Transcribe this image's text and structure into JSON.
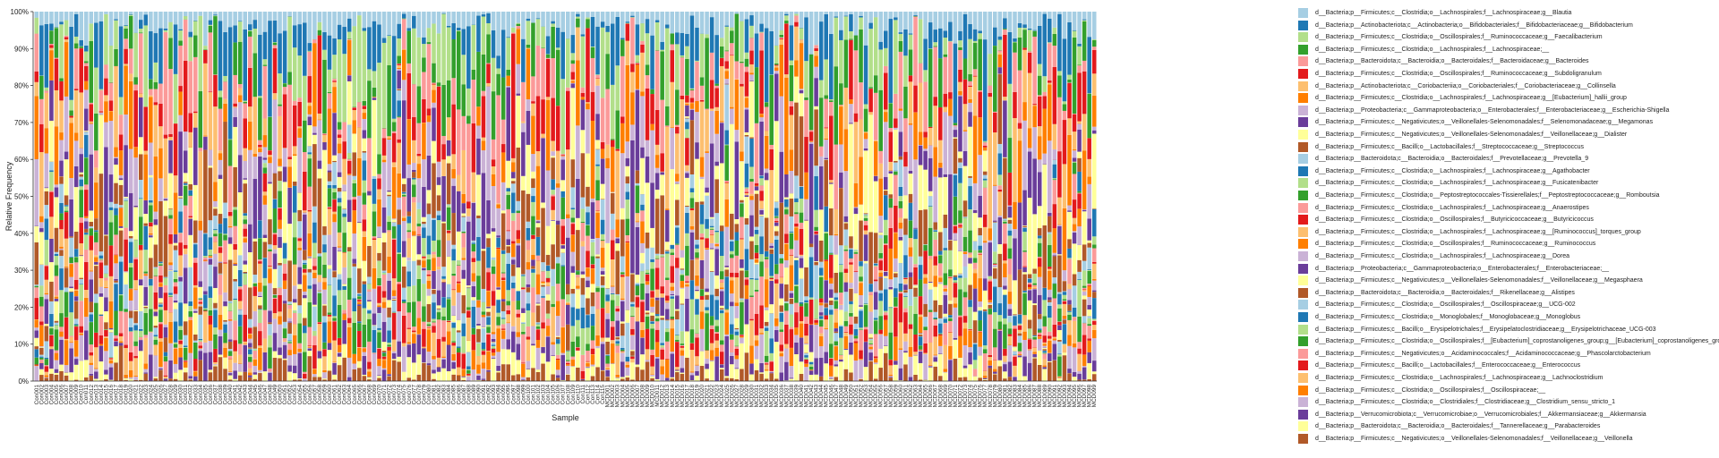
{
  "chart_data": {
    "type": "bar",
    "stacked": true,
    "xlabel": "Sample",
    "ylabel": "Relative Frequency",
    "ylim": [
      0,
      1
    ],
    "yticks": [
      "0%",
      "10%",
      "20%",
      "30%",
      "40%",
      "50%",
      "60%",
      "70%",
      "80%",
      "90%",
      "100%"
    ],
    "categories": [
      "Con001",
      "Con002",
      "Con003",
      "Con004",
      "Con005",
      "Con006",
      "Con007",
      "Con008",
      "Con009",
      "Con010",
      "Con011",
      "Con012",
      "Con013",
      "Con014",
      "Con015",
      "Con016",
      "Con017",
      "Con018",
      "Con019",
      "Con020",
      "Con021",
      "Con022",
      "Con023",
      "Con024",
      "Con025",
      "Con026",
      "Con027",
      "Con028",
      "Con029",
      "Con030",
      "Con031",
      "Con032",
      "Con033",
      "Con034",
      "Con035",
      "Con036",
      "Con037",
      "Con038",
      "Con039",
      "Con040",
      "Con041",
      "Con042",
      "Con043",
      "Con044",
      "Con045",
      "Con046",
      "Con047",
      "Con048",
      "Con049",
      "Con050",
      "Con051",
      "Con052",
      "Con053",
      "Con054",
      "Con055",
      "Con056",
      "Con057",
      "Con058",
      "Con059",
      "Con060",
      "Con061",
      "Con062",
      "Con063",
      "Con064",
      "Con065",
      "Con066",
      "Con067",
      "Con068",
      "Con069",
      "Con070",
      "Con071",
      "Con072",
      "Con073",
      "Con074",
      "Con075",
      "Con076",
      "Con077",
      "Con078",
      "Con079",
      "Con080",
      "Con081",
      "Con082",
      "Con083",
      "Con084",
      "Con085",
      "Con086",
      "Con087",
      "Con088",
      "Con089",
      "Con090",
      "Con091",
      "Con092",
      "Con093",
      "Con094",
      "Con095",
      "Con096",
      "Con097",
      "Con098",
      "Con099",
      "Con100",
      "Con101",
      "Con102",
      "Con103",
      "Con104",
      "Con105",
      "Con106",
      "Con107",
      "Con108",
      "Con109",
      "Con110",
      "Con111",
      "Con112",
      "Con113",
      "Con114",
      "Con115",
      "MCD001",
      "MCD002",
      "MCD003",
      "MCD004",
      "MCD005",
      "MCD006",
      "MCD007",
      "MCD008",
      "MCD009",
      "MCD010",
      "MCD011",
      "MCD012",
      "MCD013",
      "MCD014",
      "MCD015",
      "MCD016",
      "MCD017",
      "MCD018",
      "MCD019",
      "MCD020",
      "MCD021",
      "MCD022",
      "MCD023",
      "MCD024",
      "MCD025",
      "MCD026",
      "MCD027",
      "MCD028",
      "MCD029",
      "MCD030",
      "MCD031",
      "MCD032",
      "MCD033",
      "MCD034",
      "MCD035",
      "MCD036",
      "MCD037",
      "MCD038",
      "MCD039",
      "MCD040",
      "MCD041",
      "MCD042",
      "MCD043",
      "MCD044",
      "MCD045",
      "MCD046",
      "MCD047",
      "MCD048",
      "MCD049",
      "MCD050",
      "MCD051",
      "MCD052",
      "MCD053",
      "MCD054",
      "MCD055",
      "MCD056",
      "MCD057",
      "MCD058",
      "MCD059",
      "MCD060",
      "MCD061",
      "MCD062",
      "MCD063",
      "MCD064",
      "MCD065",
      "MCD066",
      "MCD067",
      "MCD068",
      "MCD069",
      "MCD070",
      "MCD071",
      "MCD072",
      "MCD073",
      "MCD074",
      "MCD075",
      "MCD076",
      "MCD077",
      "MCD078",
      "MCD079",
      "MCD080",
      "MCD081",
      "MCD082",
      "MCD083",
      "MCD084",
      "MCD085",
      "MCD086",
      "MCD087",
      "MCD088",
      "MCD089",
      "MCD090",
      "MCD091",
      "MCD092",
      "MCD093",
      "MCD094",
      "MCD095",
      "MCD096",
      "MCD097",
      "MCD098",
      "MCD099"
    ],
    "series": [
      {
        "name": "d__Bacteria;p__Firmicutes;c__Clostridia;o__Lachnospirales;f__Lachnospiraceae;g__Blautia",
        "color": "#a6cee3"
      },
      {
        "name": "d__Bacteria;p__Actinobacteriota;c__Actinobacteria;o__Bifidobacteriales;f__Bifidobacteriaceae;g__Bifidobacterium",
        "color": "#1f78b4"
      },
      {
        "name": "d__Bacteria;p__Firmicutes;c__Clostridia;o__Oscillospirales;f__Ruminococcaceae;g__Faecalibacterium",
        "color": "#b2df8a"
      },
      {
        "name": "d__Bacteria;p__Firmicutes;c__Clostridia;o__Lachnospirales;f__Lachnospiraceae;__",
        "color": "#33a02c"
      },
      {
        "name": "d__Bacteria;p__Bacteroidota;c__Bacteroidia;o__Bacteroidales;f__Bacteroidaceae;g__Bacteroides",
        "color": "#fb9a99"
      },
      {
        "name": "d__Bacteria;p__Firmicutes;c__Clostridia;o__Oscillospirales;f__Ruminococcaceae;g__Subdoligranulum",
        "color": "#e31a1c"
      },
      {
        "name": "d__Bacteria;p__Actinobacteriota;c__Coriobacteriia;o__Coriobacteriales;f__Coriobacteriaceae;g__Collinsella",
        "color": "#fdbf6f"
      },
      {
        "name": "d__Bacteria;p__Firmicutes;c__Clostridia;o__Lachnospirales;f__Lachnospiraceae;g__[Eubacterium]_hallii_group",
        "color": "#ff7f00"
      },
      {
        "name": "d__Bacteria;p__Proteobacteria;c__Gammaproteobacteria;o__Enterobacterales;f__Enterobacteriaceae;g__Escherichia-Shigella",
        "color": "#cab2d6"
      },
      {
        "name": "d__Bacteria;p__Firmicutes;c__Negativicutes;o__Veillonellales-Selenomonadales;f__Selenomonadaceae;g__Megamonas",
        "color": "#6a3d9a"
      },
      {
        "name": "d__Bacteria;p__Firmicutes;c__Negativicutes;o__Veillonellales-Selenomonadales;f__Veillonellaceae;g__Dialister",
        "color": "#ffff99"
      },
      {
        "name": "d__Bacteria;p__Firmicutes;c__Bacilli;o__Lactobacillales;f__Streptococcaceae;g__Streptococcus",
        "color": "#b15928"
      },
      {
        "name": "d__Bacteria;p__Bacteroidota;c__Bacteroidia;o__Bacteroidales;f__Prevotellaceae;g__Prevotella_9",
        "color": "#a6cee3"
      },
      {
        "name": "d__Bacteria;p__Firmicutes;c__Clostridia;o__Lachnospirales;f__Lachnospiraceae;g__Agathobacter",
        "color": "#1f78b4"
      },
      {
        "name": "d__Bacteria;p__Firmicutes;c__Clostridia;o__Lachnospirales;f__Lachnospiraceae;g__Fusicatenibacter",
        "color": "#b2df8a"
      },
      {
        "name": "d__Bacteria;p__Firmicutes;c__Clostridia;o__Peptostreptococcales-Tissierellales;f__Peptostreptococcaceae;g__Romboutsia",
        "color": "#33a02c"
      },
      {
        "name": "d__Bacteria;p__Firmicutes;c__Clostridia;o__Lachnospirales;f__Lachnospiraceae;g__Anaerostipes",
        "color": "#fb9a99"
      },
      {
        "name": "d__Bacteria;p__Firmicutes;c__Clostridia;o__Oscillospirales;f__Butyricicoccaceae;g__Butyricicoccus",
        "color": "#e31a1c"
      },
      {
        "name": "d__Bacteria;p__Firmicutes;c__Clostridia;o__Lachnospirales;f__Lachnospiraceae;g__[Ruminococcus]_torques_group",
        "color": "#fdbf6f"
      },
      {
        "name": "d__Bacteria;p__Firmicutes;c__Clostridia;o__Oscillospirales;f__Ruminococcaceae;g__Ruminococcus",
        "color": "#ff7f00"
      },
      {
        "name": "d__Bacteria;p__Firmicutes;c__Clostridia;o__Lachnospirales;f__Lachnospiraceae;g__Dorea",
        "color": "#cab2d6"
      },
      {
        "name": "d__Bacteria;p__Proteobacteria;c__Gammaproteobacteria;o__Enterobacterales;f__Enterobacteriaceae;__",
        "color": "#6a3d9a"
      },
      {
        "name": "d__Bacteria;p__Firmicutes;c__Negativicutes;o__Veillonellales-Selenomonadales;f__Veillonellaceae;g__Megasphaera",
        "color": "#ffff99"
      },
      {
        "name": "d__Bacteria;p__Bacteroidota;c__Bacteroidia;o__Bacteroidales;f__Rikenellaceae;g__Alistipes",
        "color": "#b15928"
      },
      {
        "name": "d__Bacteria;p__Firmicutes;c__Clostridia;o__Oscillospirales;f__Oscillospiraceae;g__UCG-002",
        "color": "#a6cee3"
      },
      {
        "name": "d__Bacteria;p__Firmicutes;c__Clostridia;o__Monoglobales;f__Monoglobaceae;g__Monoglobus",
        "color": "#1f78b4"
      },
      {
        "name": "d__Bacteria;p__Firmicutes;c__Bacilli;o__Erysipelotrichales;f__Erysipelatoclostridiaceae;g__Erysipelotrichaceae_UCG-003",
        "color": "#b2df8a"
      },
      {
        "name": "d__Bacteria;p__Firmicutes;c__Clostridia;o__Oscillospirales;f__[Eubacterium]_coprostanoligenes_group;g__[Eubacterium]_coprostanoligenes_group",
        "color": "#33a02c"
      },
      {
        "name": "d__Bacteria;p__Firmicutes;c__Negativicutes;o__Acidaminococcales;f__Acidaminococcaceae;g__Phascolarctobacterium",
        "color": "#fb9a99"
      },
      {
        "name": "d__Bacteria;p__Firmicutes;c__Bacilli;o__Lactobacillales;f__Enterococcaceae;g__Enterococcus",
        "color": "#e31a1c"
      },
      {
        "name": "d__Bacteria;p__Firmicutes;c__Clostridia;o__Lachnospirales;f__Lachnospiraceae;g__Lachnoclostridium",
        "color": "#fdbf6f"
      },
      {
        "name": "d__Bacteria;p__Firmicutes;c__Clostridia;o__Oscillospirales;f__Oscillospiraceae;__",
        "color": "#ff7f00"
      },
      {
        "name": "d__Bacteria;p__Firmicutes;c__Clostridia;o__Clostridiales;f__Clostridiaceae;g__Clostridium_sensu_stricto_1",
        "color": "#cab2d6"
      },
      {
        "name": "d__Bacteria;p__Verrucomicrobiota;c__Verrucomicrobiae;o__Verrucomicrobiales;f__Akkermansiaceae;g__Akkermansia",
        "color": "#6a3d9a"
      },
      {
        "name": "d__Bacteria;p__Bacteroidota;c__Bacteroidia;o__Bacteroidales;f__Tannerellaceae;g__Parabacteroides",
        "color": "#ffff99"
      },
      {
        "name": "d__Bacteria;p__Firmicutes;c__Negativicutes;o__Veillonellales-Selenomonadales;f__Veillonellaceae;g__Veillonella",
        "color": "#b15928"
      }
    ],
    "legend_position": "right",
    "grid": false
  }
}
